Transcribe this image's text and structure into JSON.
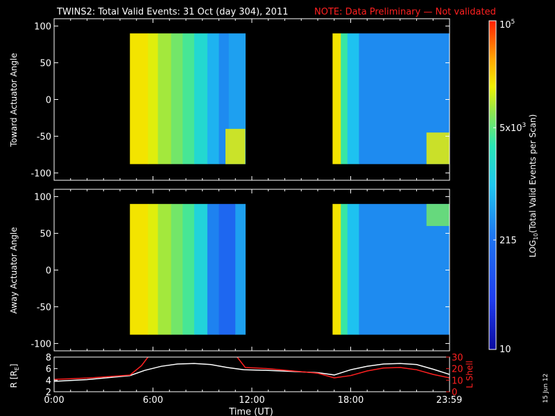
{
  "header": {
    "title": "TWINS2: Total Valid Events: 31 Oct (day 304), 2011",
    "note": "NOTE: Data Preliminary — Not validated"
  },
  "stamp": "15 Jun 12",
  "colors": {
    "background": "#000000",
    "foreground": "#ffffff",
    "note": "#ff2020",
    "lshell": "#ff2020"
  },
  "colorbar": {
    "label_main": "LOG",
    "label_sub": "10",
    "label_rest": "(Total Valid Events per Scan)",
    "ticks": [
      "10",
      "215",
      "5x10",
      "10"
    ],
    "tick_exps": [
      "",
      "",
      "3",
      "5"
    ],
    "tick_values": [
      10,
      215,
      5000,
      100000
    ],
    "range": [
      10,
      100000
    ],
    "scale": "log"
  },
  "chart_data": [
    {
      "type": "heatmap",
      "ylabel": "Toward Actuator Angle",
      "ylim": [
        -110,
        110
      ],
      "yticks": [
        "100",
        "50",
        "0",
        "-50",
        "-100"
      ],
      "ytick_values": [
        100,
        50,
        0,
        -50,
        -100
      ],
      "data_angle_range": [
        -88,
        90
      ],
      "xlim_hours": [
        0,
        24
      ],
      "columns": [
        {
          "t": [
            4.6,
            5.7
          ],
          "v": 18000
        },
        {
          "t": [
            5.7,
            6.3
          ],
          "v": 14000
        },
        {
          "t": [
            6.3,
            7.1
          ],
          "v": 9000
        },
        {
          "t": [
            7.1,
            7.8
          ],
          "v": 6000
        },
        {
          "t": [
            7.8,
            8.5
          ],
          "v": 4000
        },
        {
          "t": [
            8.5,
            9.3
          ],
          "v": 1800
        },
        {
          "t": [
            9.3,
            10.0
          ],
          "v": 700
        },
        {
          "t": [
            10.0,
            10.6
          ],
          "v": 350
        },
        {
          "t": [
            10.6,
            11.6
          ],
          "v": 500
        },
        {
          "t": [
            16.9,
            17.4
          ],
          "v": 18000
        },
        {
          "t": [
            17.4,
            17.8
          ],
          "v": 3500
        },
        {
          "t": [
            17.8,
            18.5
          ],
          "v": 900
        },
        {
          "t": [
            18.5,
            24.0
          ],
          "v": 350
        }
      ],
      "hotspots": [
        {
          "t": [
            10.4,
            11.6
          ],
          "a": [
            -88,
            -40
          ],
          "v": 15000
        },
        {
          "t": [
            22.6,
            24.0
          ],
          "a": [
            -88,
            -45
          ],
          "v": 15000
        }
      ]
    },
    {
      "type": "heatmap",
      "ylabel": "Away Actuator Angle",
      "ylim": [
        -110,
        110
      ],
      "yticks": [
        "100",
        "50",
        "0",
        "-50",
        "-100"
      ],
      "ytick_values": [
        100,
        50,
        0,
        -50,
        -100
      ],
      "data_angle_range": [
        -88,
        90
      ],
      "xlim_hours": [
        0,
        24
      ],
      "columns": [
        {
          "t": [
            4.6,
            5.7
          ],
          "v": 18000
        },
        {
          "t": [
            5.7,
            6.3
          ],
          "v": 14000
        },
        {
          "t": [
            6.3,
            7.1
          ],
          "v": 9000
        },
        {
          "t": [
            7.1,
            7.8
          ],
          "v": 6000
        },
        {
          "t": [
            7.8,
            8.5
          ],
          "v": 4000
        },
        {
          "t": [
            8.5,
            9.3
          ],
          "v": 1500
        },
        {
          "t": [
            9.3,
            10.0
          ],
          "v": 300
        },
        {
          "t": [
            10.0,
            11.0
          ],
          "v": 150
        },
        {
          "t": [
            11.0,
            11.6
          ],
          "v": 500
        },
        {
          "t": [
            16.9,
            17.4
          ],
          "v": 18000
        },
        {
          "t": [
            17.4,
            17.8
          ],
          "v": 3500
        },
        {
          "t": [
            17.8,
            18.5
          ],
          "v": 900
        },
        {
          "t": [
            18.5,
            24.0
          ],
          "v": 350
        }
      ],
      "hotspots": [
        {
          "t": [
            22.6,
            24.0
          ],
          "a": [
            60,
            90
          ],
          "v": 6000
        }
      ]
    },
    {
      "type": "line",
      "ylabel": "R [R",
      "ylabel_sub": "E",
      "ylabel_end": "]",
      "ylim": [
        2,
        8
      ],
      "yticks": [
        "8",
        "6",
        "4",
        "2"
      ],
      "ytick_values": [
        8,
        6,
        4,
        2
      ],
      "y2label": "L Shell",
      "y2lim": [
        0,
        30
      ],
      "y2ticks": [
        "30",
        "20",
        "10",
        "0"
      ],
      "y2tick_values": [
        30,
        20,
        10,
        0
      ],
      "xlabel": "Time (UT)",
      "xticks": [
        "0:00",
        "6:00",
        "12:00",
        "18:00",
        "23:59"
      ],
      "xtick_values": [
        0,
        6,
        12,
        18,
        23.98
      ],
      "xlim_hours": [
        0,
        24
      ],
      "series": [
        {
          "name": "R",
          "color": "#ffffff",
          "x": [
            0,
            2,
            4.6,
            5.5,
            6.5,
            7.5,
            8.5,
            9.5,
            10.5,
            11.5,
            13,
            14.5,
            16,
            17,
            18,
            19,
            20,
            21,
            22,
            23,
            24
          ],
          "y": [
            3.8,
            4.1,
            4.8,
            5.7,
            6.4,
            6.8,
            6.9,
            6.7,
            6.2,
            5.8,
            5.7,
            5.5,
            5.3,
            4.9,
            5.8,
            6.4,
            6.8,
            6.9,
            6.7,
            5.9,
            5.0
          ]
        },
        {
          "name": "L Shell",
          "color": "#ff2020",
          "segments": [
            {
              "x": [
                0,
                2,
                4.6,
                5.3,
                5.8
              ],
              "y": [
                10.6,
                11.8,
                14.4,
                22.5,
                32
              ]
            },
            {
              "x": [
                11.0,
                11.6,
                13,
                14.5,
                16,
                17,
                18,
                19,
                20,
                21,
                22,
                23,
                24
              ],
              "y": [
                32,
                21,
                20,
                18,
                16,
                12,
                14,
                18,
                20.5,
                21,
                19,
                15,
                12
              ]
            }
          ]
        }
      ]
    }
  ]
}
